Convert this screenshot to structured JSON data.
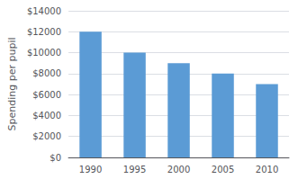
{
  "chart_data": {
    "type": "bar",
    "categories": [
      "1990",
      "1995",
      "2000",
      "2005",
      "2010"
    ],
    "values": [
      12000,
      10000,
      9000,
      8000,
      7000
    ],
    "color": "#5B9BD5",
    "ylabel": "Spending per pupil",
    "ylim": [
      0,
      14000
    ],
    "yticks": [
      {
        "value": 0,
        "label": "$0"
      },
      {
        "value": 2000,
        "label": "$2000"
      },
      {
        "value": 4000,
        "label": "$4000"
      },
      {
        "value": 6000,
        "label": "$6000"
      },
      {
        "value": 8000,
        "label": "$8000"
      },
      {
        "value": 10000,
        "label": "$10000"
      },
      {
        "value": 12000,
        "label": "$12000"
      },
      {
        "value": 14000,
        "label": "$14000"
      }
    ],
    "grid": true
  }
}
